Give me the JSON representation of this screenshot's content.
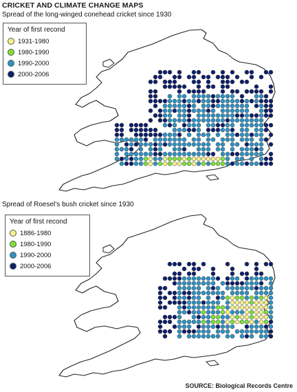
{
  "title": "CRICKET AND CLIMATE CHANGE MAPS",
  "maps": [
    {
      "subtitle": "Spread of the long-winged conehead cricket since 1930",
      "legend_title": "Year of first recond",
      "legend": [
        {
          "label": "1931-1980",
          "color": "#f7f38c"
        },
        {
          "label": "1980-1990",
          "color": "#7ee23a"
        },
        {
          "label": "1990-2000",
          "color": "#2e93c4"
        },
        {
          "label": "2000-2006",
          "color": "#0f1f6b"
        }
      ]
    },
    {
      "subtitle": "Spread of Roesel’s bush cricket since 1930",
      "legend_title": "Year of first recond",
      "legend": [
        {
          "label": "1886-1980",
          "color": "#f7f38c"
        },
        {
          "label": "1980-1990",
          "color": "#7ee23a"
        },
        {
          "label": "1990-2000",
          "color": "#2e93c4"
        },
        {
          "label": "2000-2006",
          "color": "#0f1f6b"
        }
      ]
    }
  ],
  "source": "SOURCE: Biological Records Centre"
}
